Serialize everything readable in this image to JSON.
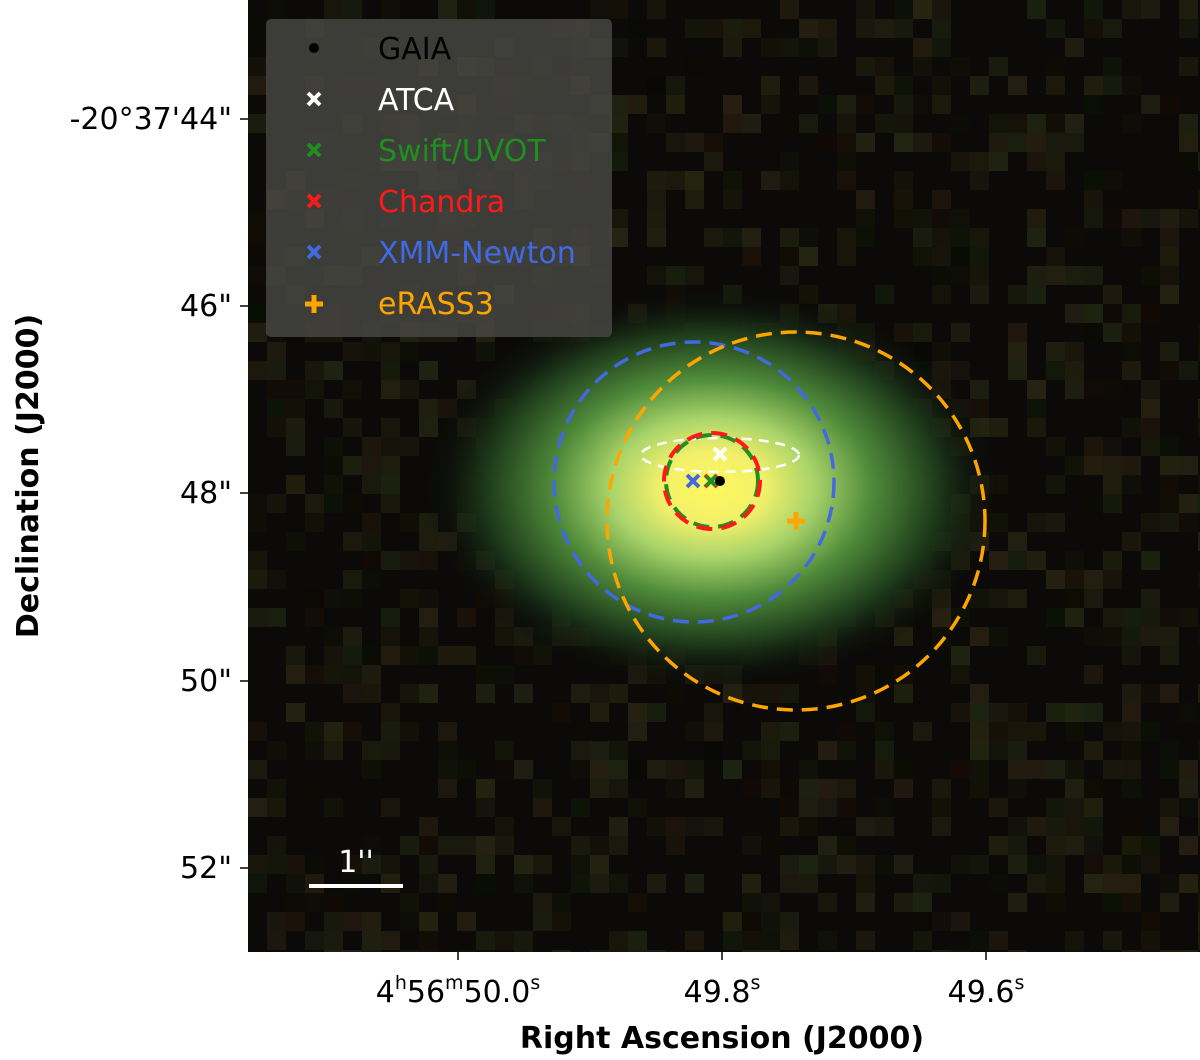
{
  "axes": {
    "xlabel": "Right Ascension (J2000)",
    "ylabel": "Declination (J2000)",
    "x_ticks": [
      {
        "parts": [
          "4",
          "h",
          "56",
          "m",
          "50.0",
          "s"
        ]
      },
      {
        "parts": [
          "",
          "",
          "",
          "",
          "49.8",
          "s"
        ]
      },
      {
        "parts": [
          "",
          "",
          "",
          "",
          "49.6",
          "s"
        ]
      }
    ],
    "y_ticks": [
      "-20°37'44\"",
      "46\"",
      "48\"",
      "50\"",
      "52\""
    ]
  },
  "legend": {
    "placement": "top-left",
    "entries": [
      {
        "label": "GAIA",
        "color": "#000000",
        "marker": "dot"
      },
      {
        "label": "ATCA",
        "color": "#ffffff",
        "marker": "x"
      },
      {
        "label": "Swift/UVOT",
        "color": "#1f8f1f",
        "marker": "x"
      },
      {
        "label": "Chandra",
        "color": "#ff1a1a",
        "marker": "x"
      },
      {
        "label": "XMM-Newton",
        "color": "#4169e1",
        "marker": "x"
      },
      {
        "label": "eRASS3",
        "color": "#ffa500",
        "marker": "plus"
      }
    ]
  },
  "scale_bar": {
    "label": "1''"
  },
  "colors": {
    "background": "#0a0a08",
    "source_core": "#fff35a",
    "source_halo": "#4f8a3a"
  }
}
